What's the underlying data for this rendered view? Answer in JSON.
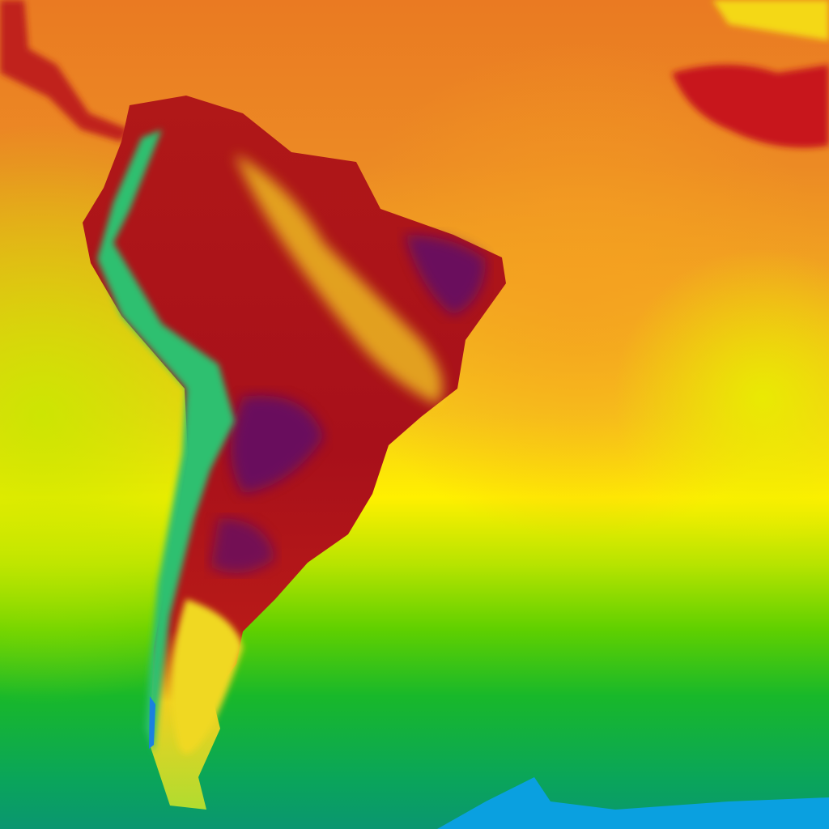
{
  "map": {
    "region": "South America",
    "type": "temperature heatmap",
    "palette": {
      "hottest": "#5a0f6e",
      "very_hot": "#a8101a",
      "hot": "#e8701f",
      "warm": "#f2b21f",
      "mild": "#fff200",
      "cool": "#9fe000",
      "cold": "#14b82a",
      "colder": "#0a9a6a",
      "coldest": "#0aa0e0"
    }
  }
}
